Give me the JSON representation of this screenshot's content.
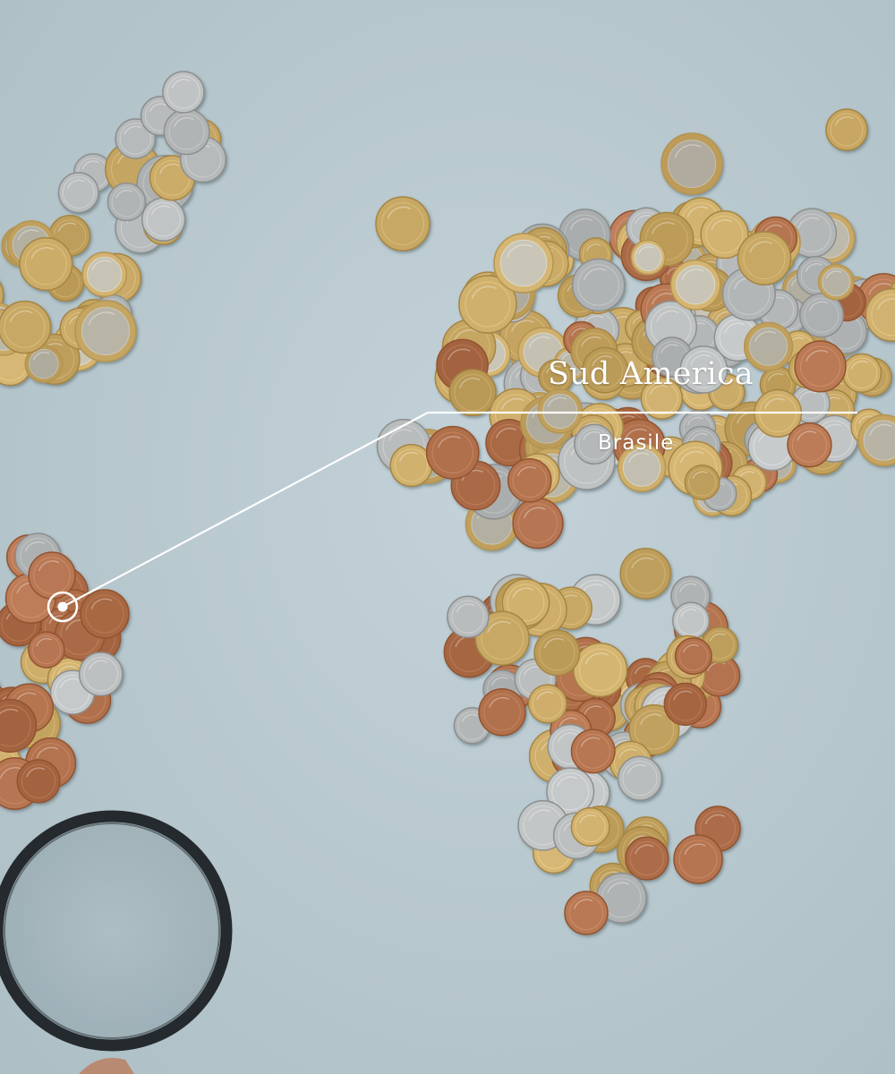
{
  "annotation": {
    "title": "Sud America",
    "subtitle": "Brasile"
  },
  "palette": {
    "background": "#b9c9cf",
    "gold": "#c8a865",
    "silver": "#b9bcbc",
    "copper": "#b0704c",
    "bimetal_rim": "#c9c4b4",
    "callout": "#ffffff",
    "lens_rim": "#242a2e"
  }
}
